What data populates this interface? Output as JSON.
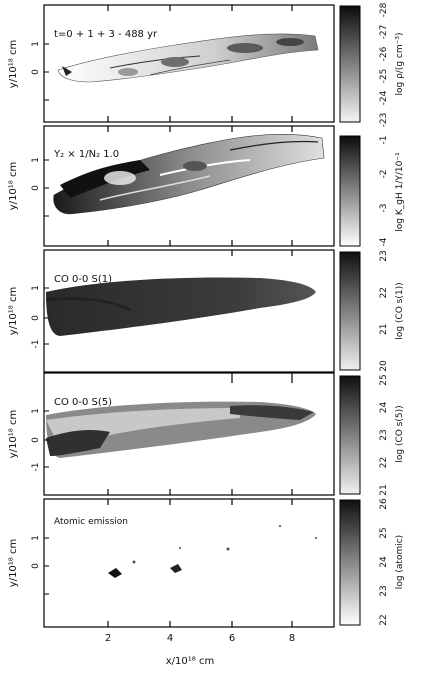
{
  "figure": {
    "x_axis": {
      "label": "x/10¹⁸ cm",
      "ticks": [
        "2",
        "4",
        "6",
        "8"
      ]
    },
    "panels": [
      {
        "id": "density",
        "title": "t=0 + 1 + 3 - 488 yr",
        "ylabel": "y/10¹⁸ cm",
        "yticks": [
          "0",
          "1"
        ],
        "colorbar_label": "log ρ/(g cm⁻³)",
        "colorbar_ticks": [
          "-23",
          "-24",
          "-25",
          "-26",
          "-27",
          "-28"
        ],
        "colorbar_gradient": [
          "#f2f2f2",
          "#111111"
        ]
      },
      {
        "id": "tracer",
        "title": "Y₂ × 1/N₂ 1.0",
        "ylabel": "y/10¹⁸ cm",
        "yticks": [
          "0",
          "1"
        ],
        "colorbar_label": "log K_gH 1/Y/10⁻¹",
        "colorbar_ticks": [
          "-4",
          "-3",
          "-2",
          "-1"
        ],
        "colorbar_gradient": [
          "#ffffff",
          "#111111"
        ]
      },
      {
        "id": "co_s1",
        "title": "CO 0-0 S(1)",
        "ylabel": "y/10¹⁸ cm",
        "yticks": [
          "-1",
          "0",
          "1"
        ],
        "colorbar_label": "log (CO s(1))",
        "colorbar_ticks": [
          "20",
          "21",
          "22",
          "23"
        ],
        "colorbar_gradient": [
          "#eeeeee",
          "#111111"
        ]
      },
      {
        "id": "co_s5",
        "title": "CO 0-0 S(5)",
        "ylabel": "y/10¹⁸ cm",
        "yticks": [
          "-1",
          "0",
          "1"
        ],
        "colorbar_label": "log (CO s(5))",
        "colorbar_ticks": [
          "21",
          "22",
          "23",
          "24",
          "25"
        ],
        "colorbar_gradient": [
          "#eeeeee",
          "#111111"
        ]
      },
      {
        "id": "atomic",
        "title": "Atomic emission",
        "ylabel": "y/10¹⁸ cm",
        "yticks": [
          "0",
          "1"
        ],
        "colorbar_label": "log (atomic)",
        "colorbar_ticks": [
          "22",
          "23",
          "24",
          "25",
          "26"
        ],
        "colorbar_gradient": [
          "#ffffff",
          "#111111"
        ]
      }
    ]
  }
}
